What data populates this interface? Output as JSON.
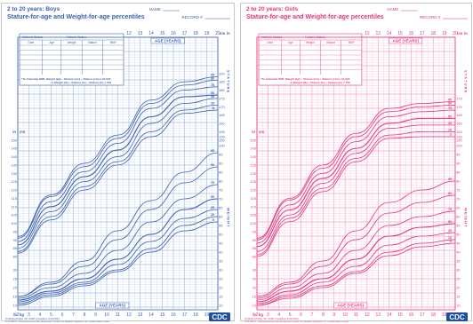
{
  "charts": {
    "boys": {
      "color": "#3a5fb0",
      "title_line1": "2 to 20 years: Boys",
      "title_line2": "Stature-for-age and Weight-for-age percentiles",
      "name_label": "NAME",
      "record_label": "RECORD #",
      "table_headers": [
        "Mother's Stature",
        "Father's Stature",
        "Date",
        "Age",
        "Weight",
        "Stature",
        "BMI*"
      ],
      "bmi_note_1": "*To Calculate BMI: Weight (kg) ÷ Stature (cm) ÷ Stature (cm) x 10,000",
      "bmi_note_2": "or Weight (lb) ÷ Stature (in) ÷ Stature (in) x 703",
      "age_axis_label": "AGE (YEARS)",
      "stature_word": "S T A T U R E",
      "weight_word": "W E I G H T",
      "footer_1": "Published May 30, 2000 (modified 11/21/00).",
      "footer_2": "SOURCE: Developed by the National Center for Health Statistics in collaboration with",
      "footer_3": "the National Center for Chronic Disease Prevention and Health Promotion (2000).",
      "logo_text": "CDC"
    },
    "girls": {
      "color": "#e8327c",
      "title_line1": "2 to 20 years: Girls",
      "title_line2": "Stature-for-age and Weight-for-age percentiles",
      "name_label": "NAME",
      "record_label": "RECORD #",
      "table_headers": [
        "Mother's Stature",
        "Father's Stature",
        "Date",
        "Age",
        "Weight",
        "Stature",
        "BMI*"
      ],
      "bmi_note_1": "*To Calculate BMI: Weight (kg) ÷ Stature (cm) ÷ Stature (cm) x 10,000",
      "bmi_note_2": "or Weight (lb) ÷ Stature (in) ÷ Stature (in) x 703",
      "age_axis_label": "AGE (YEARS)",
      "stature_word": "S T A T U R E",
      "weight_word": "W E I G H T",
      "footer_1": "Published May 30, 2000 (modified 11/21/00).",
      "footer_2": "SOURCE: Developed by the National Center for Health Statistics in collaboration with",
      "footer_3": "the National Center for Chronic Disease Prevention and Health Promotion (2000).",
      "logo_text": "CDC"
    }
  },
  "chart_data": [
    {
      "type": "line",
      "title": "Stature-for-age and Weight-for-age percentiles",
      "subtitle": "2 to 20 years: Boys",
      "xlabel": "AGE (YEARS)",
      "x_ticks": [
        2,
        3,
        4,
        5,
        6,
        7,
        8,
        9,
        10,
        11,
        12,
        13,
        14,
        15,
        16,
        17,
        18,
        19,
        20
      ],
      "top_x_ticks": [
        12,
        13,
        14,
        15,
        16,
        17,
        18,
        19,
        20
      ],
      "xlim": [
        2,
        20
      ],
      "stature_ylim_cm": [
        80,
        200
      ],
      "weight_ylim_kg": [
        10,
        105
      ],
      "stature_tick_cm": [
        80,
        85,
        90,
        95,
        100,
        105,
        110,
        115,
        120,
        125,
        130,
        135,
        140,
        145,
        150,
        155,
        160,
        165,
        170,
        175,
        180,
        185,
        190
      ],
      "weight_tick_kg": [
        10,
        15,
        20,
        25,
        30,
        35,
        40,
        45,
        50,
        55,
        60,
        65,
        70,
        75,
        80,
        85,
        90,
        95,
        100,
        105
      ],
      "ages": [
        2,
        5,
        8,
        11,
        14,
        17,
        20
      ],
      "stature_series": [
        {
          "name": "5",
          "values": [
            82,
            102,
            120,
            135,
            152,
            166,
            168
          ]
        },
        {
          "name": "10",
          "values": [
            83,
            104,
            122,
            137,
            155,
            168,
            171
          ]
        },
        {
          "name": "25",
          "values": [
            85,
            107,
            125,
            140,
            160,
            172,
            175
          ]
        },
        {
          "name": "50",
          "values": [
            87,
            110,
            128,
            144,
            164,
            176,
            177
          ]
        },
        {
          "name": "75",
          "values": [
            89,
            113,
            131,
            148,
            169,
            180,
            182
          ]
        },
        {
          "name": "90",
          "values": [
            91,
            116,
            134,
            151,
            172,
            183,
            186
          ]
        },
        {
          "name": "95",
          "values": [
            92,
            117,
            136,
            153,
            174,
            185,
            188
          ]
        }
      ],
      "weight_series": [
        {
          "name": "5",
          "values": [
            10,
            15,
            21,
            29,
            40,
            52,
            57
          ]
        },
        {
          "name": "10",
          "values": [
            11,
            16,
            22,
            30,
            42,
            55,
            60
          ]
        },
        {
          "name": "25",
          "values": [
            12,
            17,
            23,
            33,
            46,
            59,
            64
          ]
        },
        {
          "name": "50",
          "values": [
            13,
            18,
            25,
            36,
            50,
            64,
            70
          ]
        },
        {
          "name": "75",
          "values": [
            14,
            20,
            28,
            41,
            57,
            70,
            78
          ]
        },
        {
          "name": "90",
          "values": [
            15,
            22,
            32,
            47,
            64,
            79,
            88
          ]
        },
        {
          "name": "95",
          "values": [
            15,
            23,
            35,
            52,
            69,
            85,
            96
          ]
        }
      ]
    },
    {
      "type": "line",
      "title": "Stature-for-age and Weight-for-age percentiles",
      "subtitle": "2 to 20 years: Girls",
      "xlabel": "AGE (YEARS)",
      "x_ticks": [
        2,
        3,
        4,
        5,
        6,
        7,
        8,
        9,
        10,
        11,
        12,
        13,
        14,
        15,
        16,
        17,
        18,
        19,
        20
      ],
      "top_x_ticks": [
        12,
        13,
        14,
        15,
        16,
        17,
        18,
        19,
        20
      ],
      "xlim": [
        2,
        20
      ],
      "stature_ylim_cm": [
        80,
        200
      ],
      "weight_ylim_kg": [
        10,
        105
      ],
      "stature_tick_cm": [
        80,
        85,
        90,
        95,
        100,
        105,
        110,
        115,
        120,
        125,
        130,
        135,
        140,
        145,
        150,
        155,
        160,
        165,
        170,
        175
      ],
      "weight_tick_kg": [
        10,
        15,
        20,
        25,
        30,
        35,
        40,
        45,
        50,
        55,
        60,
        65,
        70,
        75,
        80,
        85,
        90,
        95,
        100,
        105
      ],
      "ages": [
        2,
        5,
        8,
        11,
        14,
        17,
        20
      ],
      "stature_series": [
        {
          "name": "5",
          "values": [
            80,
            101,
            119,
            137,
            151,
            152,
            152
          ]
        },
        {
          "name": "10",
          "values": [
            81,
            103,
            121,
            139,
            153,
            155,
            155
          ]
        },
        {
          "name": "25",
          "values": [
            83,
            105,
            124,
            142,
            157,
            159,
            159
          ]
        },
        {
          "name": "50",
          "values": [
            86,
            108,
            127,
            145,
            160,
            163,
            163
          ]
        },
        {
          "name": "75",
          "values": [
            88,
            111,
            130,
            149,
            164,
            167,
            168
          ]
        },
        {
          "name": "90",
          "values": [
            90,
            114,
            133,
            152,
            167,
            170,
            171
          ]
        },
        {
          "name": "95",
          "values": [
            91,
            115,
            135,
            154,
            169,
            172,
            173
          ]
        }
      ],
      "weight_series": [
        {
          "name": "5",
          "values": [
            10,
            14,
            20,
            28,
            38,
            43,
            45
          ]
        },
        {
          "name": "10",
          "values": [
            10,
            15,
            21,
            29,
            40,
            45,
            47
          ]
        },
        {
          "name": "25",
          "values": [
            11,
            16,
            23,
            32,
            44,
            49,
            51
          ]
        },
        {
          "name": "50",
          "values": [
            12,
            18,
            25,
            36,
            49,
            54,
            56
          ]
        },
        {
          "name": "75",
          "values": [
            13,
            20,
            28,
            41,
            55,
            60,
            63
          ]
        },
        {
          "name": "90",
          "values": [
            14,
            22,
            32,
            47,
            62,
            68,
            72
          ]
        },
        {
          "name": "95",
          "values": [
            15,
            23,
            35,
            52,
            68,
            75,
            80
          ]
        }
      ]
    }
  ]
}
